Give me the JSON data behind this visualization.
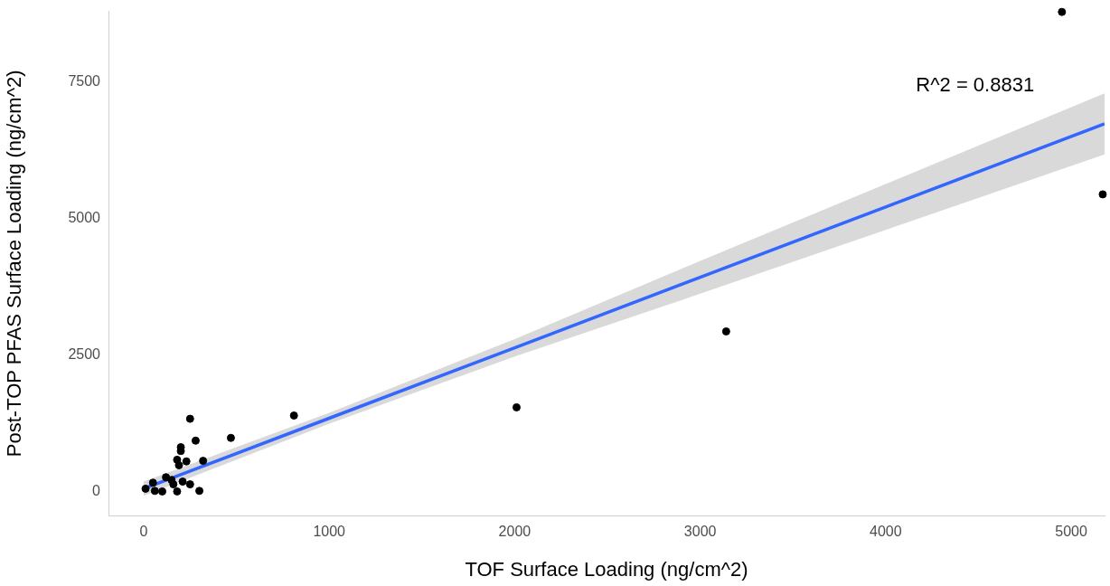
{
  "chart_data": {
    "type": "scatter",
    "xlabel": "TOF Surface Loading (ng/cm^2)",
    "ylabel": "Post-TOP PFAS Surface Loading (ng/cm^2)",
    "annotations": [
      "R^2 = 0.8831"
    ],
    "xlim": [
      -190,
      5180
    ],
    "ylim": [
      -440,
      8790
    ],
    "xticks": [
      0,
      1000,
      2000,
      3000,
      4000,
      5000
    ],
    "yticks": [
      0,
      2500,
      5000,
      7500
    ],
    "grid": false,
    "legend": false,
    "series": [
      {
        "type": "scatter",
        "color": "#000000",
        "marker": "circle",
        "x": [
          250,
          810,
          280,
          470,
          200,
          200,
          180,
          230,
          320,
          190,
          250,
          300,
          10,
          50,
          120,
          160,
          100,
          180,
          60,
          150,
          210,
          2010,
          3140,
          4950,
          5170
        ],
        "values": [
          1330,
          1390,
          930,
          980,
          810,
          740,
          580,
          550,
          560,
          480,
          130,
          10,
          50,
          160,
          260,
          130,
          0,
          0,
          10,
          210,
          180,
          1540,
          2930,
          8780,
          5440
        ]
      },
      {
        "type": "line",
        "color": "#3366ff",
        "x": [
          0,
          1000,
          2000,
          3000,
          4000,
          5180
        ],
        "values": [
          50,
          1340,
          2630,
          3920,
          5210,
          6730
        ],
        "lower": [
          -80,
          1240,
          2470,
          3620,
          4790,
          6170
        ],
        "upper": [
          180,
          1440,
          2790,
          4220,
          5630,
          7290
        ]
      }
    ]
  }
}
